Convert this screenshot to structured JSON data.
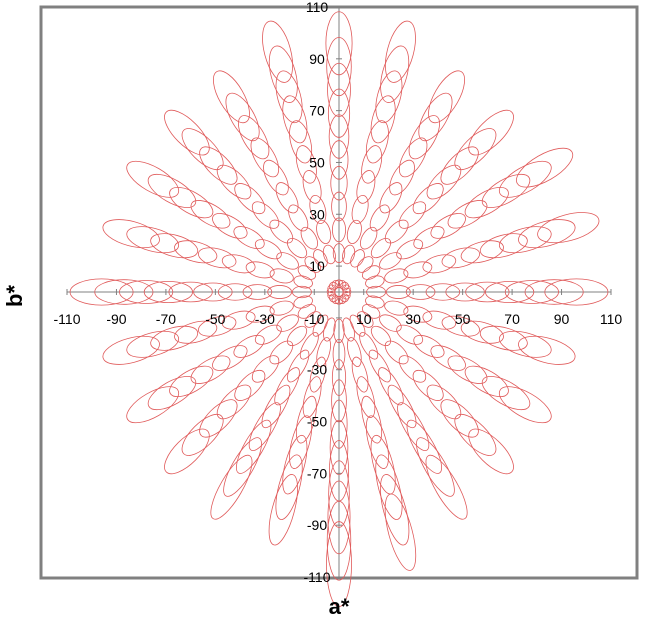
{
  "chart_data": {
    "type": "scatter",
    "title": "",
    "xlabel": "a*",
    "ylabel": "b*",
    "xlim": [
      -110,
      110
    ],
    "ylim": [
      -110,
      110
    ],
    "x_ticks": [
      -110,
      -90,
      -70,
      -50,
      -30,
      -10,
      10,
      30,
      50,
      70,
      90,
      110
    ],
    "y_ticks": [
      110,
      90,
      70,
      50,
      30,
      10,
      -30,
      -50,
      -70,
      -90,
      -110
    ],
    "x_tick_labels": [
      "-110",
      "-90",
      "-70",
      "-50",
      "-30",
      "-10",
      "10",
      "30",
      "50",
      "70",
      "90",
      "110"
    ],
    "y_tick_labels": [
      "110",
      "90",
      "70",
      "50",
      "30",
      "10",
      "-30",
      "-50",
      "-70",
      "-90",
      "-110"
    ],
    "grid": false,
    "legend": "none",
    "series_color": "#e05a5a",
    "center_ring": {
      "count": 16,
      "radius": 3.2,
      "ellipse_radius": 1.6
    },
    "radial_series": {
      "angles_deg": [
        0,
        15,
        30,
        45,
        60,
        75,
        90,
        105,
        120,
        135,
        150,
        165,
        180,
        195,
        210,
        225,
        240,
        255,
        270,
        285,
        300,
        315,
        330,
        345
      ],
      "radii": [
        15,
        24,
        33,
        42,
        51,
        60,
        69,
        78,
        87,
        96
      ],
      "max_radius_by_angle": {
        "0": 96,
        "15": 96,
        "30": 96,
        "45": 87,
        "60": 87,
        "75": 96,
        "90": 96,
        "105": 96,
        "120": 87,
        "135": 87,
        "150": 87,
        "165": 87,
        "180": 96,
        "195": 87,
        "210": 87,
        "225": 87,
        "240": 87,
        "255": 87,
        "270": 105,
        "285": 96,
        "300": 87,
        "315": 87,
        "330": 87,
        "345": 87
      }
    }
  }
}
